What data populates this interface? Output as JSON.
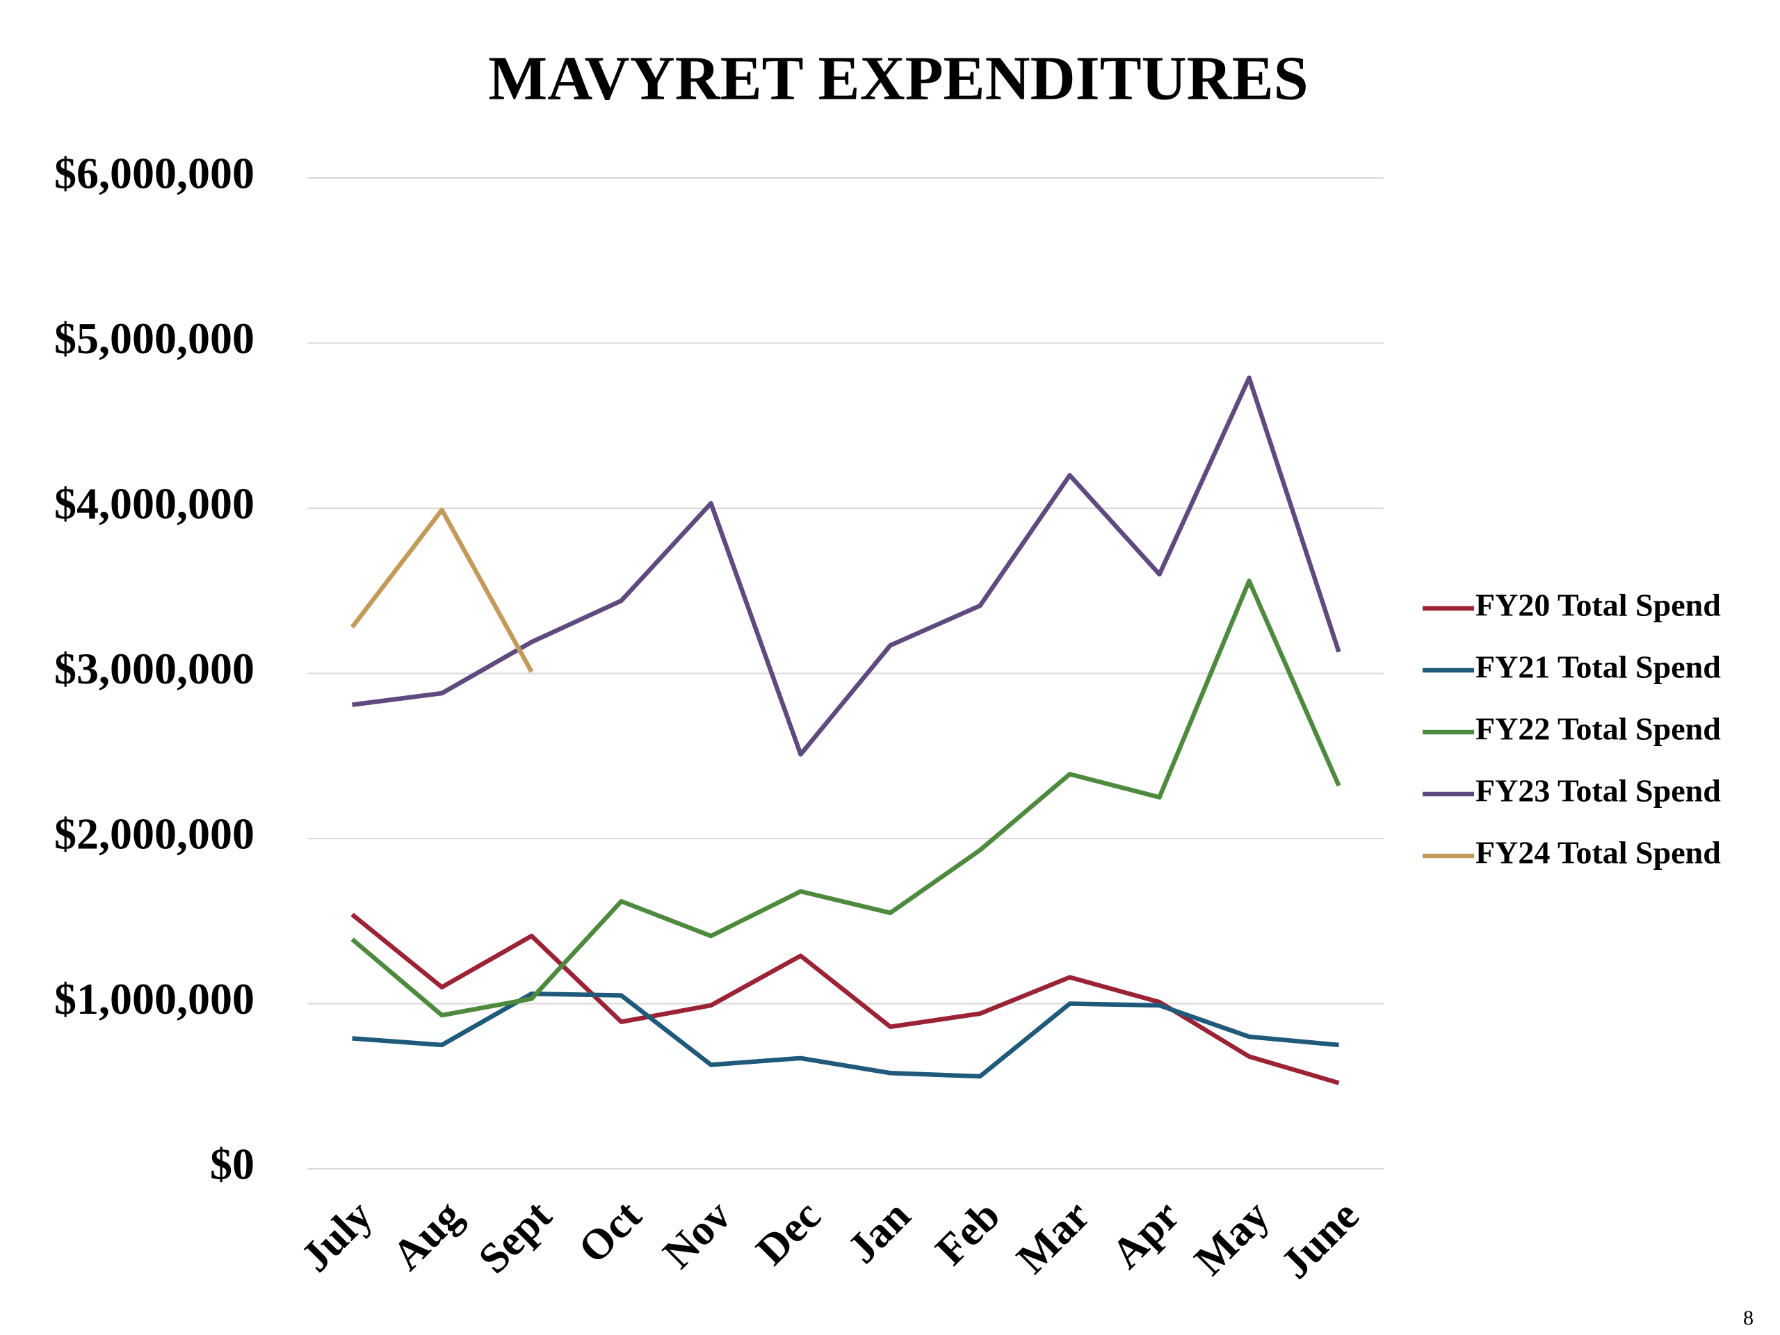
{
  "chart_data": {
    "type": "line",
    "title": "MAVYRET EXPENDITURES",
    "categories": [
      "July",
      "Aug",
      "Sept",
      "Oct",
      "Nov",
      "Dec",
      "Jan",
      "Feb",
      "Mar",
      "Apr",
      "May",
      "June"
    ],
    "series": [
      {
        "name": "FY20 Total Spend",
        "color": "#9b2335",
        "values": [
          1540000,
          1100000,
          1410000,
          890000,
          990000,
          1290000,
          860000,
          940000,
          1160000,
          1010000,
          680000,
          520000
        ]
      },
      {
        "name": "FY21 Total Spend",
        "color": "#1f5a7a",
        "values": [
          790000,
          750000,
          1060000,
          1050000,
          630000,
          670000,
          580000,
          560000,
          1000000,
          990000,
          800000,
          750000
        ]
      },
      {
        "name": "FY22 Total Spend",
        "color": "#4e8a3e",
        "values": [
          1390000,
          930000,
          1030000,
          1620000,
          1410000,
          1680000,
          1550000,
          1930000,
          2390000,
          2250000,
          3560000,
          2320000
        ]
      },
      {
        "name": "FY23 Total Spend",
        "color": "#5e4a7e",
        "values": [
          2810000,
          2880000,
          3190000,
          3440000,
          4030000,
          2510000,
          3170000,
          3410000,
          4200000,
          3600000,
          4790000,
          3130000
        ]
      },
      {
        "name": "FY24 Total Spend",
        "color": "#c39a5a",
        "values": [
          3280000,
          3990000,
          3010000,
          null,
          null,
          null,
          null,
          null,
          null,
          null,
          null,
          null
        ]
      }
    ],
    "ylim": [
      0,
      6000000
    ],
    "yticks": [
      {
        "value": 0,
        "label": "$0"
      },
      {
        "value": 1000000,
        "label": "$1,000,000"
      },
      {
        "value": 2000000,
        "label": "$2,000,000"
      },
      {
        "value": 3000000,
        "label": "$3,000,000"
      },
      {
        "value": 4000000,
        "label": "$4,000,000"
      },
      {
        "value": 5000000,
        "label": "$5,000,000"
      },
      {
        "value": 6000000,
        "label": "$6,000,000"
      }
    ],
    "grid": true,
    "legend": "right"
  },
  "page_number": "8"
}
